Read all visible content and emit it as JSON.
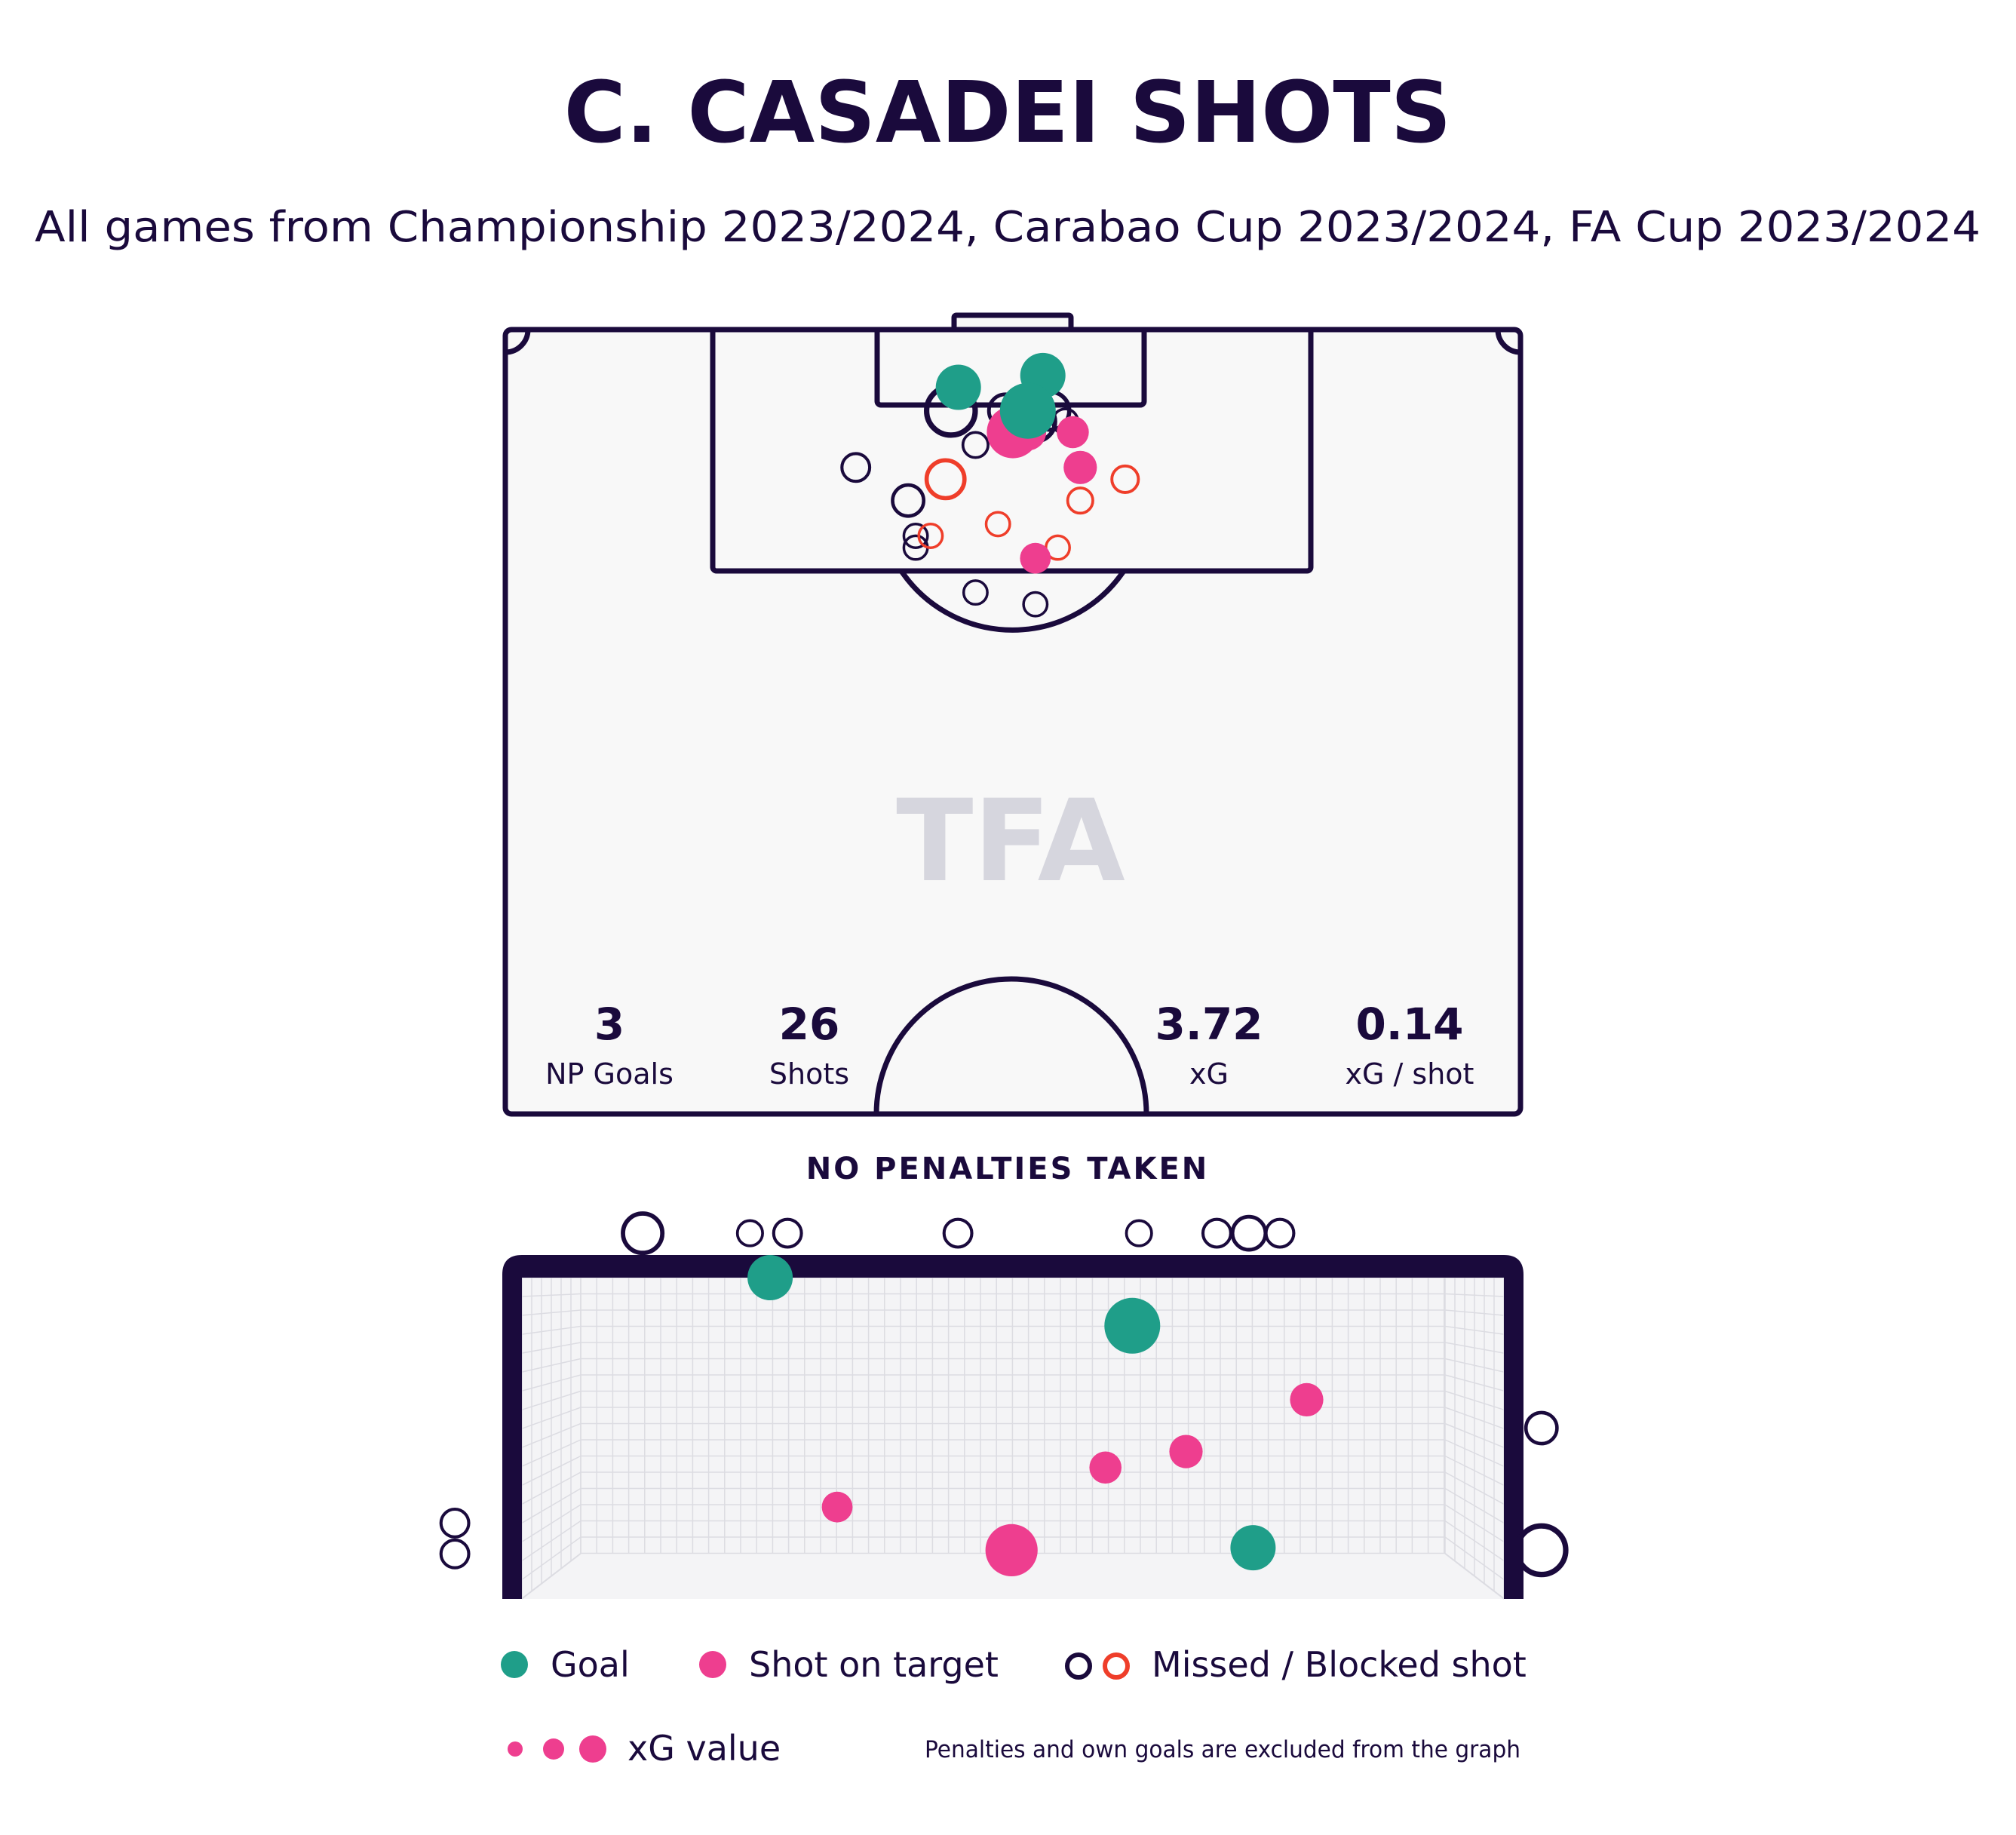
{
  "title": "C. CASADEI SHOTS",
  "subtitle": "All games from Championship 2023/2024, Carabao Cup 2023/2024, FA Cup 2023/2024",
  "watermark": "TFA",
  "stats": [
    {
      "value": "3",
      "label": "NP Goals"
    },
    {
      "value": "26",
      "label": "Shots"
    },
    {
      "value": "3.72",
      "label": "xG"
    },
    {
      "value": "0.14",
      "label": "xG / shot"
    }
  ],
  "penalties_note": "NO PENALTIES TAKEN",
  "legend": {
    "goal": "Goal",
    "on_target": "Shot on target",
    "missed": "Missed / Blocked shot",
    "xg": "xG value",
    "footnote": "Penalties and own goals are excluded from the graph"
  },
  "colors": {
    "ink": "#1a0a3c",
    "goal": "#1f9e89",
    "on_target": "#ee3e8f",
    "missed": "#1a0a3c",
    "blocked": "#ef3e2a",
    "pitch_bg": "#f8f8f8",
    "net_grid": "#dcdce2",
    "watermark": "#d6d6de"
  },
  "chart_data": {
    "type": "scatter",
    "title": "C. CASADEI SHOTS",
    "subtitle": "All games from Championship 2023/2024, Carabao Cup 2023/2024, FA Cup 2023/2024",
    "pitch_note": "x = distance from goal-line-centre across pitch (m, left negative), y = distance from goal line (m); xg = shot xG",
    "shot_map": [
      {
        "x": -5.1,
        "y": 5.4,
        "xg": 0.22,
        "outcome": "goal"
      },
      {
        "x": 2.8,
        "y": 4.3,
        "xg": 0.22,
        "outcome": "goal"
      },
      {
        "x": 1.4,
        "y": 7.6,
        "xg": 0.38,
        "outcome": "goal"
      },
      {
        "x": 0.0,
        "y": 9.6,
        "xg": 0.32,
        "outcome": "on_target"
      },
      {
        "x": 1.4,
        "y": 9.6,
        "xg": 0.12,
        "outcome": "on_target"
      },
      {
        "x": 5.6,
        "y": 9.6,
        "xg": 0.08,
        "outcome": "on_target"
      },
      {
        "x": 6.3,
        "y": 12.9,
        "xg": 0.09,
        "outcome": "on_target"
      },
      {
        "x": 2.1,
        "y": 21.4,
        "xg": 0.07,
        "outcome": "on_target"
      },
      {
        "x": -5.8,
        "y": 7.6,
        "xg": 0.35,
        "outcome": "missed"
      },
      {
        "x": -0.7,
        "y": 7.6,
        "xg": 0.12,
        "outcome": "missed"
      },
      {
        "x": 3.5,
        "y": 7.6,
        "xg": 0.18,
        "outcome": "missed"
      },
      {
        "x": 2.1,
        "y": 8.6,
        "xg": 0.2,
        "outcome": "missed"
      },
      {
        "x": 4.9,
        "y": 8.6,
        "xg": 0.05,
        "outcome": "missed"
      },
      {
        "x": -3.5,
        "y": 10.8,
        "xg": 0.05,
        "outcome": "missed"
      },
      {
        "x": -14.7,
        "y": 12.9,
        "xg": 0.07,
        "outcome": "missed"
      },
      {
        "x": -9.8,
        "y": 16.0,
        "xg": 0.1,
        "outcome": "missed"
      },
      {
        "x": -9.1,
        "y": 19.3,
        "xg": 0.04,
        "outcome": "missed"
      },
      {
        "x": -9.1,
        "y": 20.4,
        "xg": 0.04,
        "outcome": "missed"
      },
      {
        "x": -3.5,
        "y": 24.6,
        "xg": 0.04,
        "outcome": "missed"
      },
      {
        "x": 2.1,
        "y": 25.7,
        "xg": 0.04,
        "outcome": "missed"
      },
      {
        "x": -6.3,
        "y": 14.0,
        "xg": 0.18,
        "outcome": "blocked"
      },
      {
        "x": 10.5,
        "y": 14.0,
        "xg": 0.06,
        "outcome": "blocked"
      },
      {
        "x": 6.3,
        "y": 16.0,
        "xg": 0.05,
        "outcome": "blocked"
      },
      {
        "x": -1.4,
        "y": 18.2,
        "xg": 0.04,
        "outcome": "blocked"
      },
      {
        "x": -7.7,
        "y": 19.3,
        "xg": 0.04,
        "outcome": "blocked"
      },
      {
        "x": 4.2,
        "y": 20.4,
        "xg": 0.04,
        "outcome": "blocked"
      }
    ],
    "goal_mouth_note": "x = across goal (m, 0 = left post, 7.32 = right post), y = height (m, 0 = ground, 2.44 = crossbar)",
    "goal_mouth": [
      {
        "x": 1.85,
        "y": 2.44,
        "xg": 0.22,
        "outcome": "goal"
      },
      {
        "x": 4.55,
        "y": 2.05,
        "xg": 0.38,
        "outcome": "goal"
      },
      {
        "x": 5.45,
        "y": 0.25,
        "xg": 0.22,
        "outcome": "goal"
      },
      {
        "x": 5.85,
        "y": 1.45,
        "xg": 0.09,
        "outcome": "on_target"
      },
      {
        "x": 4.95,
        "y": 1.03,
        "xg": 0.09,
        "outcome": "on_target"
      },
      {
        "x": 4.35,
        "y": 0.9,
        "xg": 0.08,
        "outcome": "on_target"
      },
      {
        "x": 2.35,
        "y": 0.58,
        "xg": 0.07,
        "outcome": "on_target"
      },
      {
        "x": 3.65,
        "y": 0.23,
        "xg": 0.32,
        "outcome": "on_target"
      },
      {
        "x": 0.9,
        "y": 2.8,
        "xg": 0.2,
        "outcome": "missed"
      },
      {
        "x": 1.7,
        "y": 2.8,
        "xg": 0.05,
        "outcome": "missed"
      },
      {
        "x": 1.98,
        "y": 2.8,
        "xg": 0.07,
        "outcome": "missed"
      },
      {
        "x": 3.25,
        "y": 2.8,
        "xg": 0.07,
        "outcome": "missed"
      },
      {
        "x": 4.6,
        "y": 2.8,
        "xg": 0.05,
        "outcome": "missed"
      },
      {
        "x": 5.18,
        "y": 2.8,
        "xg": 0.07,
        "outcome": "missed"
      },
      {
        "x": 5.42,
        "y": 2.8,
        "xg": 0.12,
        "outcome": "missed"
      },
      {
        "x": 5.65,
        "y": 2.8,
        "xg": 0.07,
        "outcome": "missed"
      },
      {
        "x": 7.6,
        "y": 1.22,
        "xg": 0.1,
        "outcome": "missed"
      },
      {
        "x": 7.6,
        "y": 0.23,
        "xg": 0.35,
        "outcome": "missed"
      },
      {
        "x": -0.5,
        "y": 0.45,
        "xg": 0.07,
        "outcome": "missed"
      },
      {
        "x": -0.5,
        "y": 0.2,
        "xg": 0.07,
        "outcome": "missed"
      }
    ]
  }
}
